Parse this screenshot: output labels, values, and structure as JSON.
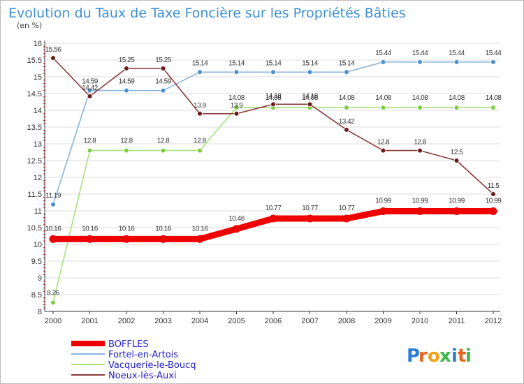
{
  "title": "Evolution du Taux de Taxe Foncière sur les Propriétés Bâties",
  "subtitle": "(en %)",
  "logo_text": "Proxiti",
  "colors": {
    "title": "#3b8fd6",
    "legend_text": "#2222cc",
    "axis": "#333333",
    "grid": "#dddddd",
    "tick_red": "#cc0000"
  },
  "chart_data": {
    "type": "line",
    "x": [
      "2000",
      "2001",
      "2002",
      "2003",
      "2004",
      "2005",
      "2006",
      "2007",
      "2008",
      "2009",
      "2010",
      "2011",
      "2012"
    ],
    "ylim": [
      8,
      16
    ],
    "yticks": [
      "8",
      "8.5",
      "9",
      "9.5",
      "10",
      "10.5",
      "11",
      "11.5",
      "12",
      "12.5",
      "13",
      "13.5",
      "14",
      "14.5",
      "15",
      "15.5",
      "16"
    ],
    "grid": "horizontal",
    "legend_placement": "bottom-left",
    "series": [
      {
        "name": "BOFFLES",
        "color": "#ee0000",
        "point_color": "#ee0000",
        "values": [
          10.16,
          10.16,
          10.16,
          10.16,
          10.16,
          10.46,
          10.77,
          10.77,
          10.77,
          10.99,
          10.99,
          10.99,
          10.99
        ],
        "labels": [
          "10.16",
          "10.16",
          "10.16",
          "10.16",
          "10.16",
          "10.46",
          "10.77",
          "10.77",
          "10.77",
          "10.99",
          "10.99",
          "10.99",
          "10.99"
        ]
      },
      {
        "name": "Fortel-en-Artois",
        "color": "#88b4dc",
        "point_color": "#4a90d0",
        "values": [
          11.19,
          14.59,
          14.59,
          14.59,
          15.14,
          15.14,
          15.14,
          15.14,
          15.14,
          15.44,
          15.44,
          15.44,
          15.44
        ],
        "labels": [
          "11.19",
          "14.59",
          "14.59",
          "14.59",
          "15.14",
          "15.14",
          "15.14",
          "15.14",
          "15.14",
          "15.44",
          "15.44",
          "15.44",
          "15.44"
        ]
      },
      {
        "name": "Vacquerie-le-Boucq",
        "color": "#a8e07c",
        "point_color": "#7ccc44",
        "values": [
          8.26,
          12.8,
          12.8,
          12.8,
          12.8,
          14.08,
          14.08,
          14.08,
          14.08,
          14.08,
          14.08,
          14.08,
          14.08
        ],
        "labels": [
          "8.26",
          "12.8",
          "12.8",
          "12.8",
          "12.8",
          "14.08",
          "14.08",
          "14.08",
          "14.08",
          "14.08",
          "14.08",
          "14.08",
          "14.08"
        ]
      },
      {
        "name": "Noeux-lès-Auxi",
        "color": "#8a3a3a",
        "point_color": "#6a1a1a",
        "values": [
          15.56,
          14.42,
          15.25,
          15.25,
          13.9,
          13.9,
          14.18,
          14.18,
          13.42,
          12.8,
          12.8,
          12.5,
          11.5
        ],
        "labels": [
          "15.56",
          "14.42",
          "15.25",
          "15.25",
          "13.9",
          "13.9",
          "14.18",
          "14.18",
          "13.42",
          "12.8",
          "12.8",
          "12.5",
          "11.5"
        ]
      }
    ]
  }
}
